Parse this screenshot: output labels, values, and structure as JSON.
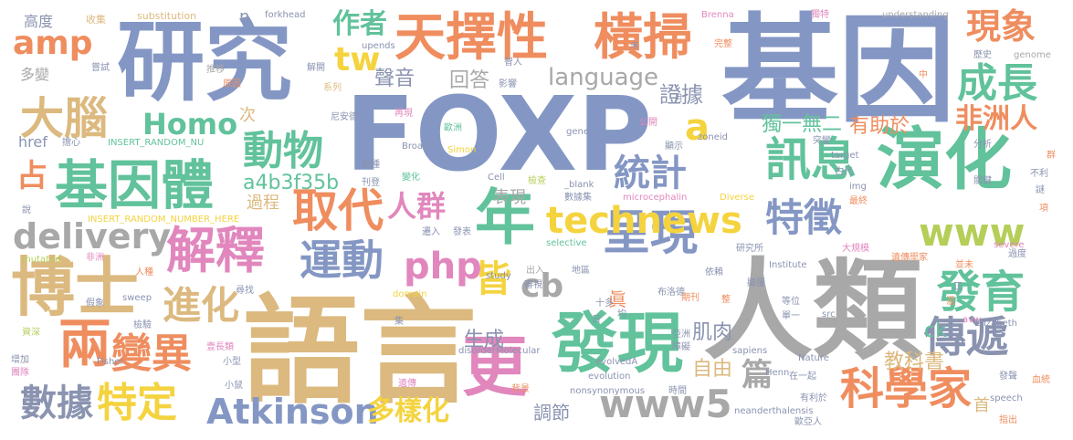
{
  "palette": {
    "blue": "#8497c4",
    "gray": "#a8a8a8",
    "tan": "#dcb97f",
    "orange": "#ef8d5f",
    "green": "#61c29b",
    "pink": "#e187bd",
    "olive": "#b4ce58",
    "yellow": "#f4d33e",
    "slate": "#8a93b0"
  },
  "words": [
    {
      "id": "w1",
      "text": "基因",
      "color": "blue"
    },
    {
      "id": "w2",
      "text": "FOXP",
      "color": "blue"
    },
    {
      "id": "w3",
      "text": "人類",
      "color": "gray"
    },
    {
      "id": "w4",
      "text": "語言",
      "color": "tan"
    },
    {
      "id": "w5",
      "text": "研究",
      "color": "blue"
    },
    {
      "id": "w6",
      "text": "發現",
      "color": "green"
    },
    {
      "id": "w7",
      "text": "演化",
      "color": "green"
    },
    {
      "id": "w8",
      "text": "天擇性",
      "color": "orange"
    },
    {
      "id": "w9",
      "text": "橫掃",
      "color": "orange"
    },
    {
      "id": "w10",
      "text": "博士",
      "color": "tan"
    },
    {
      "id": "w11",
      "text": "更",
      "color": "pink"
    },
    {
      "id": "w12",
      "text": "年",
      "color": "green"
    },
    {
      "id": "w13",
      "text": "基因體",
      "color": "green"
    },
    {
      "id": "w14",
      "text": "解釋",
      "color": "pink"
    },
    {
      "id": "w15",
      "text": "取代",
      "color": "orange"
    },
    {
      "id": "w16",
      "text": "呈現",
      "color": "blue"
    },
    {
      "id": "w17",
      "text": "technews",
      "color": "yellow"
    },
    {
      "id": "w18",
      "text": "www5",
      "color": "gray"
    },
    {
      "id": "w19",
      "text": "Atkinson",
      "color": "blue"
    },
    {
      "id": "w20",
      "text": "兩",
      "color": "orange"
    },
    {
      "id": "w21",
      "text": "delivery",
      "color": "gray"
    },
    {
      "id": "w22",
      "text": "運動",
      "color": "blue"
    },
    {
      "id": "w23",
      "text": "動物",
      "color": "green"
    },
    {
      "id": "w24",
      "text": "訊息",
      "color": "green"
    },
    {
      "id": "w25",
      "text": "www",
      "color": "olive"
    },
    {
      "id": "w26",
      "text": "科學家",
      "color": "orange"
    },
    {
      "id": "w27",
      "text": "傳遞",
      "color": "slate"
    },
    {
      "id": "w28",
      "text": "發育",
      "color": "green"
    },
    {
      "id": "w29",
      "text": "成長",
      "color": "green"
    },
    {
      "id": "w30",
      "text": "大腦",
      "color": "tan"
    },
    {
      "id": "w31",
      "text": "變異",
      "color": "orange"
    },
    {
      "id": "w32",
      "text": "特定",
      "color": "yellow"
    },
    {
      "id": "w33",
      "text": "進化",
      "color": "tan"
    },
    {
      "id": "w34",
      "text": "php",
      "color": "pink"
    },
    {
      "id": "w35",
      "text": "特徵",
      "color": "blue"
    },
    {
      "id": "w36",
      "text": "統計",
      "color": "blue"
    },
    {
      "id": "w37",
      "text": "數據",
      "color": "slate"
    },
    {
      "id": "w38",
      "text": "Homo",
      "color": "green"
    },
    {
      "id": "w39",
      "text": "現象",
      "color": "orange"
    },
    {
      "id": "w40",
      "text": "amp",
      "color": "orange"
    },
    {
      "id": "w41",
      "text": "language",
      "color": "gray"
    },
    {
      "id": "w42",
      "text": "cb",
      "color": "gray"
    },
    {
      "id": "w43",
      "text": "皆",
      "color": "yellow"
    },
    {
      "id": "w44",
      "text": "篇",
      "color": "gray"
    },
    {
      "id": "w45",
      "text": "多樣化",
      "color": "yellow"
    },
    {
      "id": "w46",
      "text": "非洲人",
      "color": "orange"
    },
    {
      "id": "w47",
      "text": "人群",
      "color": "pink"
    },
    {
      "id": "w48",
      "text": "占",
      "color": "orange"
    },
    {
      "id": "w49",
      "text": "a",
      "color": "yellow"
    },
    {
      "id": "w50",
      "text": "tw",
      "color": "yellow"
    },
    {
      "id": "w51",
      "text": "作者",
      "color": "green"
    },
    {
      "id": "w52",
      "text": "證據",
      "color": "slate"
    },
    {
      "id": "w53",
      "text": "a4b3f35b",
      "color": "green"
    },
    {
      "id": "w54",
      "text": "獨一無二",
      "color": "green"
    },
    {
      "id": "w55",
      "text": "肌肉",
      "color": "slate"
    },
    {
      "id": "w56",
      "text": "聲音",
      "color": "slate"
    },
    {
      "id": "w57",
      "text": "回答",
      "color": "gray"
    },
    {
      "id": "w58",
      "text": "有助於",
      "color": "orange"
    },
    {
      "id": "w59",
      "text": "生成",
      "color": "slate"
    },
    {
      "id": "w60",
      "text": "自由",
      "color": "tan"
    },
    {
      "id": "w61",
      "text": "教科書",
      "color": "tan"
    },
    {
      "id": "w62",
      "text": "調節",
      "color": "slate"
    },
    {
      "id": "w63",
      "text": "表現",
      "color": "gray"
    },
    {
      "id": "w64",
      "text": "過程",
      "color": "tan"
    },
    {
      "id": "w65",
      "text": "眞",
      "color": "orange"
    },
    {
      "id": "w66",
      "text": "href",
      "color": "slate"
    },
    {
      "id": "w67",
      "text": "次",
      "color": "tan"
    },
    {
      "id": "w68",
      "text": "高度",
      "color": "slate"
    },
    {
      "id": "w69",
      "text": "多變",
      "color": "gray"
    },
    {
      "id": "w70",
      "text": "n",
      "color": "slate"
    },
    {
      "id": "w71",
      "text": "ck",
      "color": "green"
    },
    {
      "id": "w72",
      "text": "首",
      "color": "tan"
    },
    {
      "id": "w73",
      "text": "收集",
      "color": "tan"
    },
    {
      "id": "w74",
      "text": "substitution",
      "color": "tan"
    },
    {
      "id": "w75",
      "text": "forkhead",
      "color": "slate"
    },
    {
      "id": "w76",
      "text": "Brenna",
      "color": "pink"
    },
    {
      "id": "w77",
      "text": "獨特",
      "color": "pink"
    },
    {
      "id": "w78",
      "text": "understanding",
      "color": "gray"
    },
    {
      "id": "w79",
      "text": "嘗試",
      "color": "slate"
    },
    {
      "id": "w80",
      "text": "upends",
      "color": "slate"
    },
    {
      "id": "w81",
      "text": "智人",
      "color": "slate"
    },
    {
      "id": "w82",
      "text": "完整",
      "color": "orange"
    },
    {
      "id": "w83",
      "text": "歷史",
      "color": "slate"
    },
    {
      "id": "w84",
      "text": "genome",
      "color": "gray"
    },
    {
      "id": "w85",
      "text": "推移",
      "color": "gray"
    },
    {
      "id": "w86",
      "text": "解開",
      "color": "slate"
    },
    {
      "id": "w87",
      "text": "影響",
      "color": "slate"
    },
    {
      "id": "w88",
      "text": "原因",
      "color": "orange"
    },
    {
      "id": "w89",
      "text": "系列",
      "color": "tan"
    },
    {
      "id": "w90",
      "text": "INSERT_RANDOM_NU",
      "color": "green"
    },
    {
      "id": "w91",
      "text": "尼安德",
      "color": "slate"
    },
    {
      "id": "w92",
      "text": "再現",
      "color": "pink"
    },
    {
      "id": "w93",
      "text": "歐洲",
      "color": "green"
    },
    {
      "id": "w94",
      "text": "公開",
      "color": "pink"
    },
    {
      "id": "w95",
      "text": "gene",
      "color": "slate"
    },
    {
      "id": "w96",
      "text": "zoneid",
      "color": "slate"
    },
    {
      "id": "w97",
      "text": "擔心",
      "color": "slate"
    },
    {
      "id": "w98",
      "text": "Broad",
      "color": "slate"
    },
    {
      "id": "w99",
      "text": "Simon",
      "color": "yellow"
    },
    {
      "id": "w100",
      "text": "顯示",
      "color": "slate"
    },
    {
      "id": "w101",
      "text": "突變",
      "color": "slate"
    },
    {
      "id": "w102",
      "text": "分析",
      "color": "slate"
    },
    {
      "id": "w103",
      "text": "target",
      "color": "slate"
    },
    {
      "id": "w104",
      "text": "變種",
      "color": "slate"
    },
    {
      "id": "w105",
      "text": "古代",
      "color": "slate"
    },
    {
      "id": "w106",
      "text": "變化",
      "color": "green"
    },
    {
      "id": "w107",
      "text": "Cell",
      "color": "slate"
    },
    {
      "id": "w108",
      "text": "檢查",
      "color": "olive"
    },
    {
      "id": "w109",
      "text": "img",
      "color": "slate"
    },
    {
      "id": "w110",
      "text": "關鍵",
      "color": "slate"
    },
    {
      "id": "w111",
      "text": "刊登",
      "color": "slate"
    },
    {
      "id": "w112",
      "text": "_blank",
      "color": "slate"
    },
    {
      "id": "w113",
      "text": "數據集",
      "color": "slate"
    },
    {
      "id": "w114",
      "text": "microcephalin",
      "color": "pink"
    },
    {
      "id": "w115",
      "text": "Diverse",
      "color": "yellow"
    },
    {
      "id": "w116",
      "text": "INSERT_RANDOM_NUMBER_HERE",
      "color": "yellow"
    },
    {
      "id": "w117",
      "text": "最終",
      "color": "orange"
    },
    {
      "id": "w118",
      "text": "mutated",
      "color": "olive"
    },
    {
      "id": "w119",
      "text": "非洲",
      "color": "pink"
    },
    {
      "id": "w120",
      "text": "遷入",
      "color": "slate"
    },
    {
      "id": "w121",
      "text": "發表",
      "color": "slate"
    },
    {
      "id": "w122",
      "text": "selective",
      "color": "green"
    },
    {
      "id": "w123",
      "text": "研究所",
      "color": "slate"
    },
    {
      "id": "w124",
      "text": "大規模",
      "color": "pink"
    },
    {
      "id": "w125",
      "text": "遺傳學家",
      "color": "orange"
    },
    {
      "id": "w126",
      "text": "severe",
      "color": "pink"
    },
    {
      "id": "w127",
      "text": "過度",
      "color": "slate"
    },
    {
      "id": "w128",
      "text": "人種",
      "color": "orange"
    },
    {
      "id": "w129",
      "text": "study",
      "color": "slate"
    },
    {
      "id": "w130",
      "text": "出入",
      "color": "gray"
    },
    {
      "id": "w131",
      "text": "審視",
      "color": "slate"
    },
    {
      "id": "w132",
      "text": "地區",
      "color": "slate"
    },
    {
      "id": "w133",
      "text": "依賴",
      "color": "slate"
    },
    {
      "id": "w134",
      "text": "Institute",
      "color": "slate"
    },
    {
      "id": "w135",
      "text": "並未",
      "color": "orange"
    },
    {
      "id": "w136",
      "text": "sweep",
      "color": "slate"
    },
    {
      "id": "w137",
      "text": "尋找",
      "color": "slate"
    },
    {
      "id": "w138",
      "text": "domain",
      "color": "yellow"
    },
    {
      "id": "w139",
      "text": "布洛德",
      "color": "slate"
    },
    {
      "id": "w140",
      "text": "顯覆",
      "color": "slate"
    },
    {
      "id": "w141",
      "text": "期刊",
      "color": "orange"
    },
    {
      "id": "w142",
      "text": "整",
      "color": "orange"
    },
    {
      "id": "w143",
      "text": "等位",
      "color": "slate"
    },
    {
      "id": "w144",
      "text": "單一",
      "color": "slate"
    },
    {
      "id": "w145",
      "text": "混",
      "color": "orange"
    },
    {
      "id": "w146",
      "text": "假象",
      "color": "slate"
    },
    {
      "id": "w147",
      "text": "十多",
      "color": "slate"
    },
    {
      "id": "w148",
      "text": "均",
      "color": "slate"
    },
    {
      "id": "w149",
      "text": "src",
      "color": "slate"
    },
    {
      "id": "w150",
      "text": "avw",
      "color": "pink"
    },
    {
      "id": "w151",
      "text": "資深",
      "color": "olive"
    },
    {
      "id": "w152",
      "text": "檢驗",
      "color": "slate"
    },
    {
      "id": "w153",
      "text": "亞洲",
      "color": "slate"
    },
    {
      "id": "w154",
      "text": "Elizabeth",
      "color": "slate"
    },
    {
      "id": "w155",
      "text": "增加",
      "color": "slate"
    },
    {
      "id": "w156",
      "text": "壹長類",
      "color": "pink"
    },
    {
      "id": "w157",
      "text": "disorderMolecular",
      "color": "slate"
    },
    {
      "id": "w158",
      "text": "障礙",
      "color": "slate"
    },
    {
      "id": "w159",
      "text": "sapiens",
      "color": "slate"
    },
    {
      "id": "w160",
      "text": "Nature",
      "color": "slate"
    },
    {
      "id": "w161",
      "text": "Fisher",
      "color": "slate"
    },
    {
      "id": "w162",
      "text": "小型",
      "color": "slate"
    },
    {
      "id": "w163",
      "text": "evolvedA",
      "color": "slate"
    },
    {
      "id": "w164",
      "text": "團隊",
      "color": "pink"
    },
    {
      "id": "w165",
      "text": "evolution",
      "color": "slate"
    },
    {
      "id": "w166",
      "text": "Henn",
      "color": "slate"
    },
    {
      "id": "w167",
      "text": "在一起",
      "color": "slate"
    },
    {
      "id": "w168",
      "text": "發聲",
      "color": "slate"
    },
    {
      "id": "w169",
      "text": "血統",
      "color": "orange"
    },
    {
      "id": "w170",
      "text": "小鼠",
      "color": "slate"
    },
    {
      "id": "w171",
      "text": "遺傳",
      "color": "pink"
    },
    {
      "id": "w172",
      "text": "背景",
      "color": "orange"
    },
    {
      "id": "w173",
      "text": "nonsynonymous",
      "color": "slate"
    },
    {
      "id": "w174",
      "text": "時間",
      "color": "slate"
    },
    {
      "id": "w175",
      "text": "有利於",
      "color": "slate"
    },
    {
      "id": "w176",
      "text": "speech",
      "color": "slate"
    },
    {
      "id": "w177",
      "text": "neanderthalensis",
      "color": "slate"
    },
    {
      "id": "w178",
      "text": "歐亞人",
      "color": "slate"
    },
    {
      "id": "w179",
      "text": "指出",
      "color": "orange"
    },
    {
      "id": "w180",
      "text": "說",
      "color": "slate"
    },
    {
      "id": "w181",
      "text": "謎",
      "color": "slate"
    },
    {
      "id": "w182",
      "text": "不利",
      "color": "slate"
    },
    {
      "id": "w183",
      "text": "項",
      "color": "orange"
    },
    {
      "id": "w184",
      "text": "群",
      "color": "orange"
    },
    {
      "id": "w185",
      "text": "正",
      "color": "slate"
    },
    {
      "id": "w186",
      "text": "中",
      "color": "orange"
    },
    {
      "id": "w187",
      "text": "月",
      "color": "slate"
    },
    {
      "id": "w188",
      "text": "日",
      "color": "slate"
    },
    {
      "id": "w189",
      "text": "集",
      "color": "slate"
    },
    {
      "id": "w190",
      "text": "未",
      "color": "slate"
    }
  ]
}
